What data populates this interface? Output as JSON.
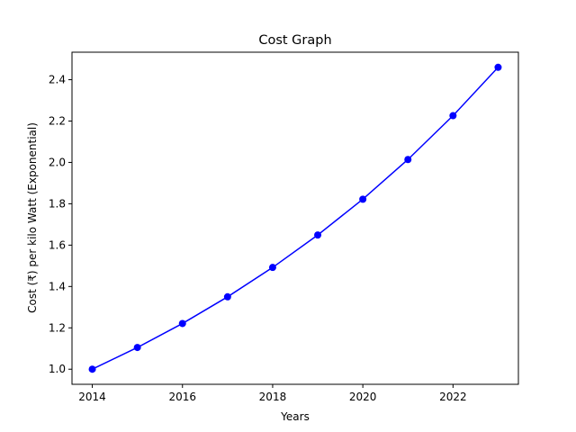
{
  "chart_data": {
    "type": "line",
    "title": "Cost Graph",
    "xlabel": "Years",
    "ylabel": "Cost (₹) per kilo Watt (Exponential)",
    "x": [
      2014,
      2015,
      2016,
      2017,
      2018,
      2019,
      2020,
      2021,
      2022,
      2023
    ],
    "series": [
      {
        "values": [
          1.0,
          1.105,
          1.221,
          1.35,
          1.492,
          1.649,
          1.822,
          2.014,
          2.226,
          2.46
        ],
        "color": "#0000ff",
        "marker": "circle"
      }
    ],
    "xlim": [
      2013.55,
      2023.45
    ],
    "ylim": [
      0.927,
      2.533
    ],
    "xticks": [
      "2014",
      "2016",
      "2018",
      "2020",
      "2022"
    ],
    "yticks": [
      "1.0",
      "1.2",
      "1.4",
      "1.6",
      "1.8",
      "2.0",
      "2.2",
      "2.4"
    ],
    "grid": false
  }
}
